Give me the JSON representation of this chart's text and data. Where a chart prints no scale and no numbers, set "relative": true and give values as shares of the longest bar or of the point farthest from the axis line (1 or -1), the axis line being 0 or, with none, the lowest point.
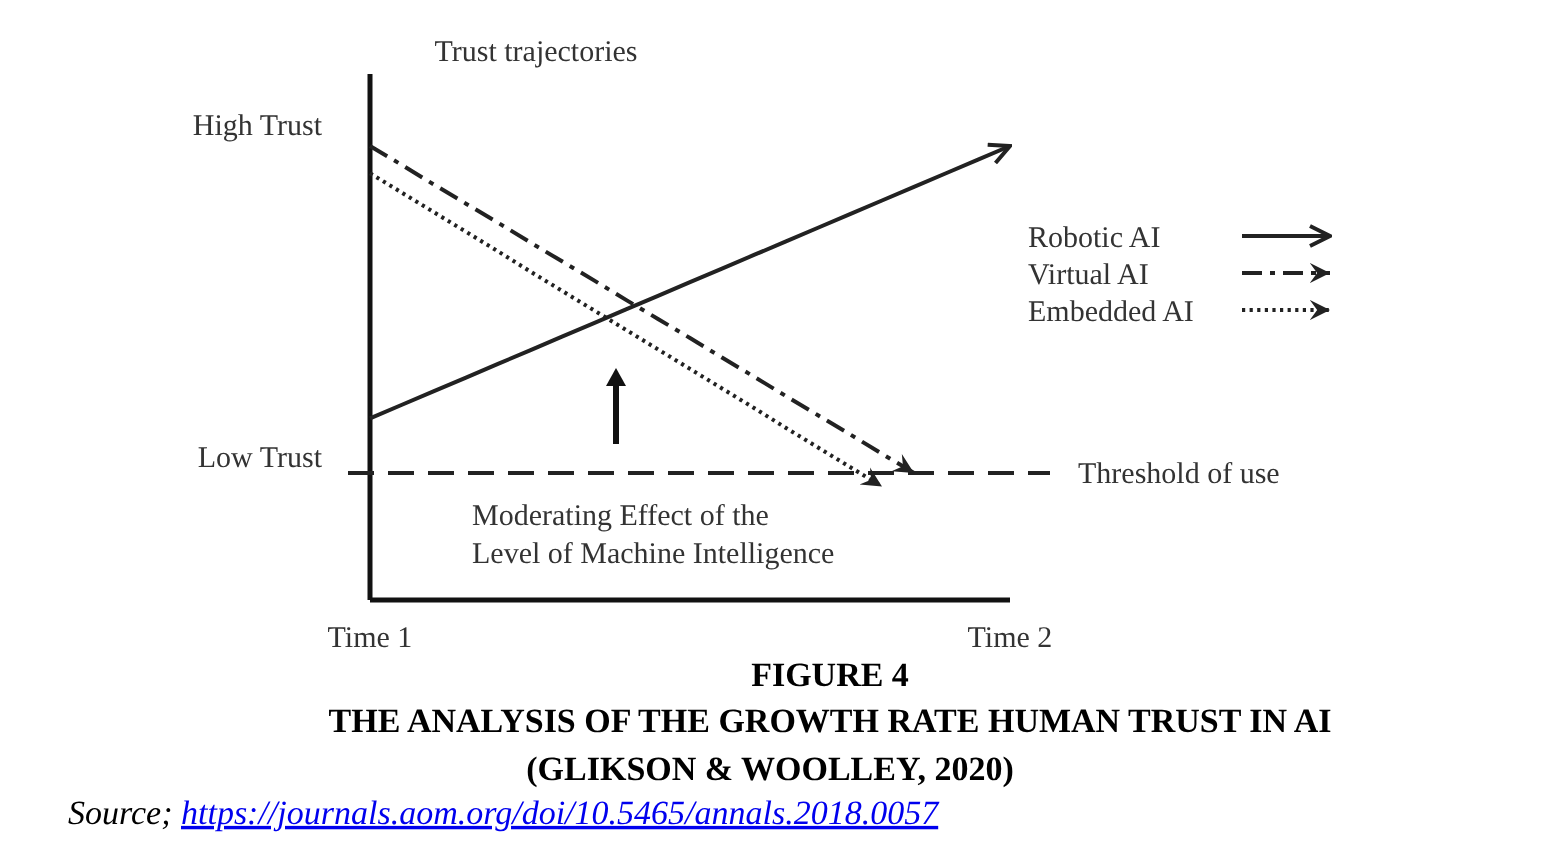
{
  "chart_data": {
    "type": "line",
    "title": "Trust trajectories",
    "relative": true,
    "categories": [
      "Time 1",
      null,
      null,
      null,
      null,
      null,
      null,
      null,
      null,
      null,
      null,
      null,
      null,
      null,
      null,
      null,
      null,
      null,
      null,
      null,
      "Time 2"
    ],
    "legend": "right",
    "series": [
      {
        "name": "Robotic AI",
        "color": "#222222",
        "line_style": "solid",
        "values": [
          0.4,
          0.43,
          0.46,
          0.49,
          0.52,
          0.55,
          0.58,
          0.61,
          0.64,
          0.67,
          0.7,
          0.73,
          0.76,
          0.79,
          0.82,
          0.85,
          0.88,
          0.91,
          0.94,
          0.97,
          1.0
        ]
      },
      {
        "name": "Virtual AI",
        "color": "#222222",
        "line_style": "dashdot",
        "values": [
          1.0,
          0.958,
          0.915,
          0.873,
          0.831,
          0.788,
          0.746,
          0.704,
          0.661,
          0.619,
          0.577,
          0.534,
          0.492,
          0.449,
          0.407,
          0.365,
          0.322,
          0.28,
          null,
          null,
          null
        ]
      },
      {
        "name": "Embedded AI",
        "color": "#222222",
        "line_style": "dotted",
        "values": [
          0.94,
          0.897,
          0.854,
          0.811,
          0.768,
          0.724,
          0.681,
          0.638,
          0.595,
          0.552,
          0.509,
          0.466,
          0.423,
          0.379,
          0.336,
          0.293,
          0.25,
          null,
          null,
          null,
          null
        ]
      }
    ],
    "ref_lines": [
      {
        "axis": "y",
        "value": 0.28,
        "label": "Threshold of use",
        "line_style": "dashed",
        "color": "#222222"
      }
    ],
    "annotations": [
      "High Trust",
      "Low Trust",
      "Moderating Effect of the\nLevel of Machine Intelligence",
      "FIGURE 4",
      "THE ANALYSIS OF THE GROWTH RATE HUMAN TRUST IN AI",
      "(GLIKSON & WOOLLEY, 2020)",
      "Source; https://journals.aom.org/doi/10.5465/annals.2018.0057"
    ]
  }
}
